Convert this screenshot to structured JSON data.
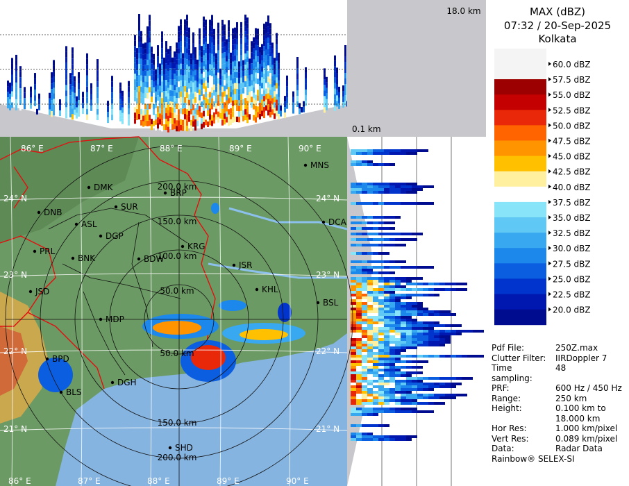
{
  "top_panel": {
    "height_top": "18.0 km",
    "height_bottom": "0.1 km"
  },
  "legend": {
    "title": "MAX (dBZ)",
    "datetime": "07:32 / 20-Sep-2025",
    "station": "Kolkata",
    "entries": [
      {
        "label": "60.0 dBZ",
        "color": null
      },
      {
        "label": "57.5 dBZ",
        "color": "#9c0000"
      },
      {
        "label": "55.0 dBZ",
        "color": "#c40000"
      },
      {
        "label": "52.5 dBZ",
        "color": "#e82808"
      },
      {
        "label": "50.0 dBZ",
        "color": "#ff6400"
      },
      {
        "label": "47.5 dBZ",
        "color": "#ff9400"
      },
      {
        "label": "45.0 dBZ",
        "color": "#ffc000"
      },
      {
        "label": "42.5 dBZ",
        "color": "#fff0a0"
      },
      {
        "label": "40.0 dBZ",
        "color": "#ffffff"
      },
      {
        "label": "37.5 dBZ",
        "color": "#88e4f8"
      },
      {
        "label": "35.0 dBZ",
        "color": "#60c8f4"
      },
      {
        "label": "32.5 dBZ",
        "color": "#38a8f0"
      },
      {
        "label": "30.0 dBZ",
        "color": "#1c88ec"
      },
      {
        "label": "27.5 dBZ",
        "color": "#0c5ee0"
      },
      {
        "label": "25.0 dBZ",
        "color": "#0034cc"
      },
      {
        "label": "22.5 dBZ",
        "color": "#0018b0"
      },
      {
        "label": "20.0 dBZ",
        "color": "#000c90"
      }
    ]
  },
  "info": {
    "rows": [
      {
        "key": "Pdf File:",
        "value": [
          "250Z.max"
        ]
      },
      {
        "key": "Clutter Filter:",
        "value": [
          "IIRDoppler 7"
        ]
      },
      {
        "key": "Time sampling:",
        "value": [
          "48"
        ]
      },
      {
        "key": "PRF:",
        "value": [
          "600 Hz / 450 Hz"
        ]
      },
      {
        "key": "Range:",
        "value": [
          "250 km"
        ]
      },
      {
        "key": "Height:",
        "value": [
          "0.100 km to",
          "18.000 km"
        ]
      },
      {
        "key": "Hor Res:",
        "value": [
          "1.000 km/pixel"
        ]
      },
      {
        "key": "Vert Res:",
        "value": [
          "0.089 km/pixel"
        ]
      },
      {
        "key": "Data:",
        "value": [
          "Radar Data"
        ]
      }
    ],
    "footer": "Rainbow® SELEX-SI"
  },
  "map": {
    "lon_labels": [
      "86° E",
      "87° E",
      "88° E",
      "89° E",
      "90° E"
    ],
    "lat_labels": [
      "24° N",
      "23° N",
      "22° N",
      "21° N"
    ],
    "range_labels_north": [
      "50.0 km",
      "100.0 km",
      "150.0 km",
      "200.0 km"
    ],
    "range_labels_south": [
      "50.0 km",
      "150.0 km",
      "200.0 km"
    ],
    "cities": [
      "MNS",
      "BRP",
      "DMK",
      "SUR",
      "DNB",
      "ASL",
      "DGP",
      "KRG",
      "DCA",
      "PRL",
      "BNK",
      "BDW",
      "JSR",
      "KHL",
      "JSD",
      "BSL",
      "MDP",
      "BPD",
      "BLS",
      "DGH",
      "SHD"
    ]
  }
}
